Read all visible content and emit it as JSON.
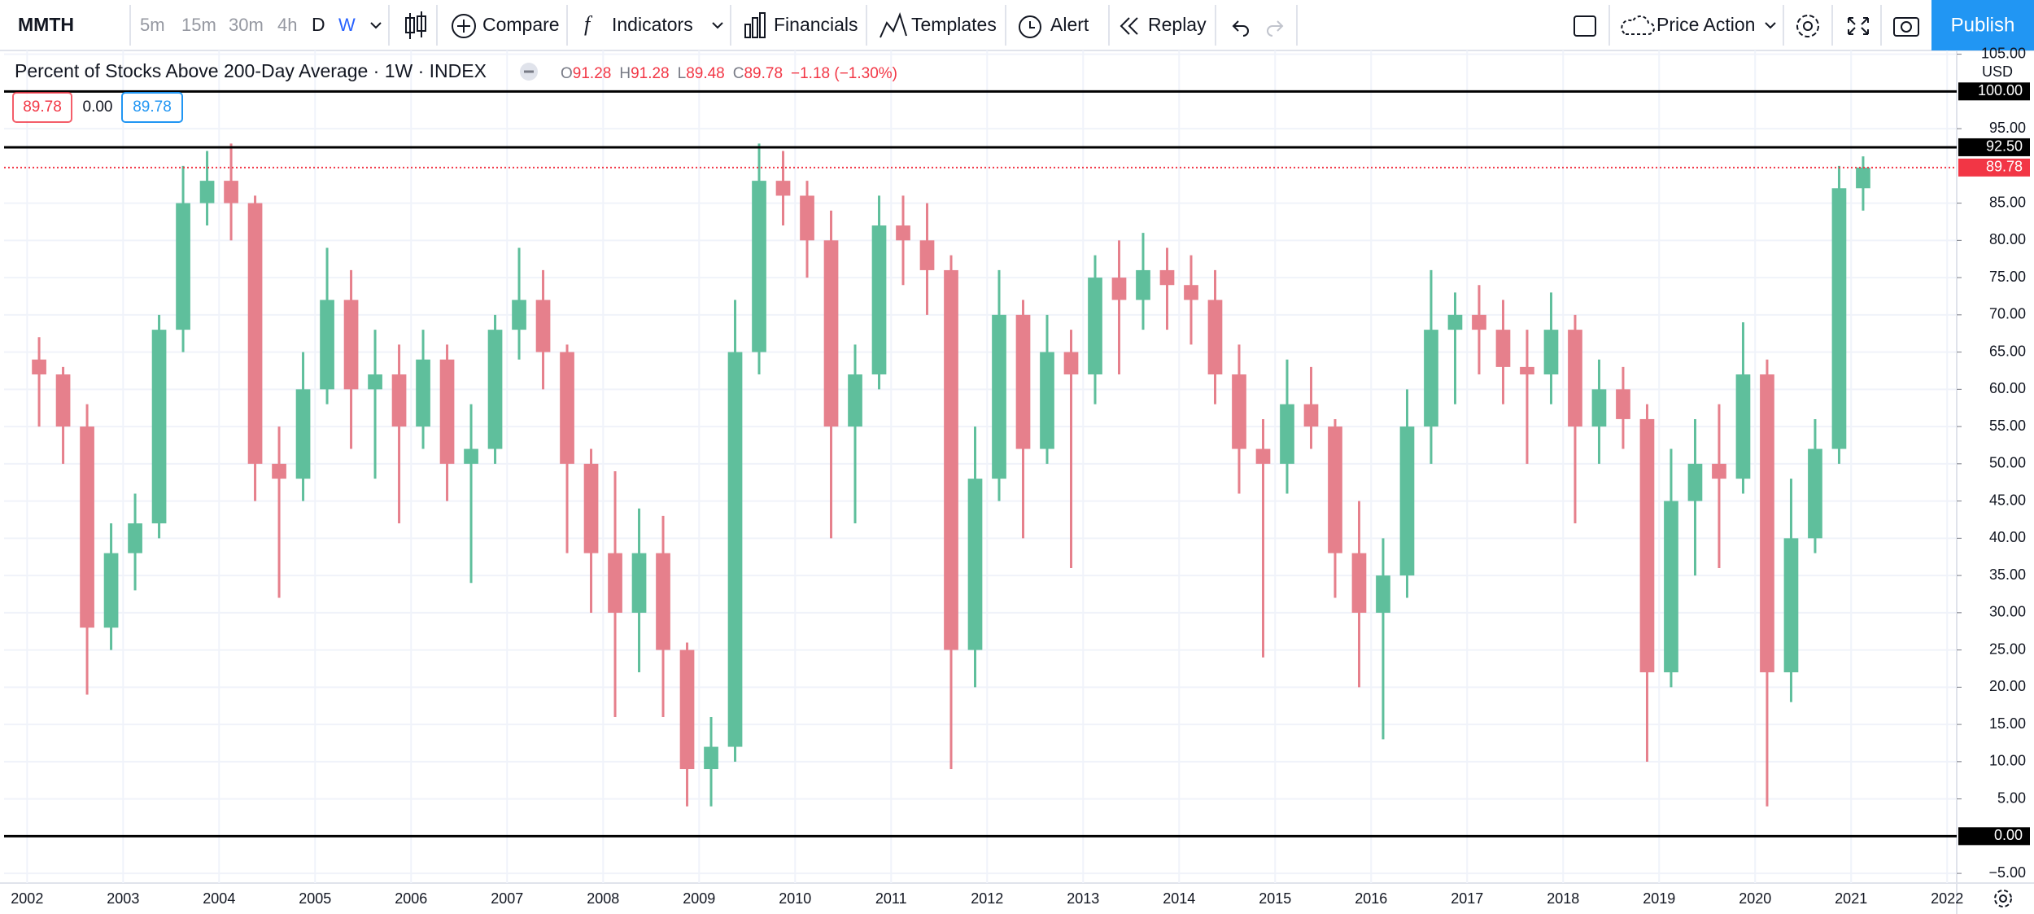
{
  "toolbar": {
    "symbol": "MMTH",
    "intervals": [
      "5m",
      "15m",
      "30m",
      "4h",
      "D",
      "W"
    ],
    "buttons": [
      "Compare",
      "Indicators",
      "Financials",
      "Templates",
      "Alert",
      "Replay"
    ],
    "layout": "Price Action",
    "publish": "Publish"
  },
  "legend": {
    "title": "Percent of Stocks Above 200-Day Average · 1W · INDEX",
    "ohlc": [
      {
        "key": "O",
        "value": "91.28"
      },
      {
        "key": "H",
        "value": "91.28"
      },
      {
        "key": "L",
        "value": "89.48"
      },
      {
        "key": "C",
        "value": "89.78"
      }
    ],
    "change": "−1.18 (−1.30%)",
    "boxes": [
      "89.78",
      "0.00",
      "89.78"
    ]
  },
  "chart_data": {
    "type": "candlestick",
    "currency": "USD",
    "up_color": "#5fbf9c",
    "down_color": "#e6808c",
    "grid": true,
    "xlim": [
      2001.76,
      2022.1
    ],
    "xticks": [
      2002,
      2003,
      2004,
      2005,
      2006,
      2007,
      2008,
      2009,
      2010,
      2011,
      2012,
      2013,
      2014,
      2015,
      2016,
      2017,
      2018,
      2019,
      2020,
      2021,
      2022
    ],
    "ylim": [
      -6.3,
      105.5
    ],
    "yticks": [
      {
        "value": 105,
        "label": "105.00"
      },
      {
        "value": 95,
        "label": "95.00"
      },
      {
        "value": 85,
        "label": "85.00"
      },
      {
        "value": 80,
        "label": "80.00"
      },
      {
        "value": 75,
        "label": "75.00"
      },
      {
        "value": 70,
        "label": "70.00"
      },
      {
        "value": 65,
        "label": "65.00"
      },
      {
        "value": 60,
        "label": "60.00"
      },
      {
        "value": 55,
        "label": "55.00"
      },
      {
        "value": 50,
        "label": "50.00"
      },
      {
        "value": 45,
        "label": "45.00"
      },
      {
        "value": 40,
        "label": "40.00"
      },
      {
        "value": 35,
        "label": "35.00"
      },
      {
        "value": 30,
        "label": "30.00"
      },
      {
        "value": 25,
        "label": "25.00"
      },
      {
        "value": 20,
        "label": "20.00"
      },
      {
        "value": 15,
        "label": "15.00"
      },
      {
        "value": 10,
        "label": "10.00"
      },
      {
        "value": 5,
        "label": "5.00"
      },
      {
        "value": -5,
        "label": "−5.00"
      }
    ],
    "hlines": [
      {
        "value": 100,
        "label": "100.00",
        "color": "#000000",
        "style": "solid"
      },
      {
        "value": 92.5,
        "label": "92.50",
        "color": "#000000",
        "style": "solid"
      },
      {
        "value": 89.78,
        "label": "89.78",
        "color": "#f23645",
        "style": "dotted"
      },
      {
        "value": 0,
        "label": "0.00",
        "color": "#000000",
        "style": "solid"
      }
    ],
    "x": [
      2002.125,
      2002.375,
      2002.625,
      2002.875,
      2003.125,
      2003.375,
      2003.625,
      2003.875,
      2004.125,
      2004.375,
      2004.625,
      2004.875,
      2005.125,
      2005.375,
      2005.625,
      2005.875,
      2006.125,
      2006.375,
      2006.625,
      2006.875,
      2007.125,
      2007.375,
      2007.625,
      2007.875,
      2008.125,
      2008.375,
      2008.625,
      2008.875,
      2009.125,
      2009.375,
      2009.625,
      2009.875,
      2010.125,
      2010.375,
      2010.625,
      2010.875,
      2011.125,
      2011.375,
      2011.625,
      2011.875,
      2012.125,
      2012.375,
      2012.625,
      2012.875,
      2013.125,
      2013.375,
      2013.625,
      2013.875,
      2014.125,
      2014.375,
      2014.625,
      2014.875,
      2015.125,
      2015.375,
      2015.625,
      2015.875,
      2016.125,
      2016.375,
      2016.625,
      2016.875,
      2017.125,
      2017.375,
      2017.625,
      2017.875,
      2018.125,
      2018.375,
      2018.625,
      2018.875,
      2019.125,
      2019.375,
      2019.625,
      2019.875,
      2020.125,
      2020.375,
      2020.625,
      2020.875,
      2021.125
    ],
    "open": [
      64,
      62,
      55,
      28,
      38,
      42,
      68,
      85,
      88,
      85,
      50,
      48,
      60,
      72,
      60,
      62,
      55,
      64,
      50,
      52,
      68,
      72,
      65,
      50,
      38,
      30,
      38,
      25,
      9,
      12,
      65,
      88,
      86,
      80,
      55,
      62,
      82,
      80,
      76,
      25,
      48,
      70,
      52,
      65,
      62,
      75,
      72,
      76,
      74,
      72,
      62,
      52,
      50,
      58,
      55,
      38,
      30,
      35,
      55,
      68,
      70,
      68,
      63,
      62,
      68,
      55,
      60,
      56,
      22,
      45,
      50,
      48,
      62,
      22,
      40,
      52,
      87
    ],
    "high": [
      67,
      63,
      58,
      42,
      46,
      70,
      90,
      92,
      93,
      86,
      55,
      65,
      79,
      76,
      68,
      66,
      68,
      66,
      58,
      70,
      79,
      76,
      66,
      52,
      49,
      44,
      43,
      26,
      16,
      72,
      93,
      92,
      88,
      84,
      66,
      86,
      86,
      85,
      78,
      55,
      76,
      72,
      70,
      68,
      78,
      80,
      81,
      79,
      78,
      76,
      66,
      56,
      64,
      63,
      56,
      45,
      40,
      60,
      76,
      73,
      74,
      72,
      68,
      73,
      70,
      64,
      63,
      58,
      52,
      56,
      58,
      69,
      64,
      48,
      56,
      90,
      91.28
    ],
    "low": [
      55,
      50,
      19,
      25,
      33,
      40,
      65,
      82,
      80,
      45,
      32,
      45,
      58,
      52,
      48,
      42,
      52,
      45,
      34,
      50,
      64,
      60,
      38,
      30,
      16,
      22,
      16,
      4,
      4,
      10,
      62,
      82,
      75,
      40,
      42,
      60,
      74,
      70,
      9,
      20,
      45,
      40,
      50,
      36,
      58,
      62,
      68,
      68,
      66,
      58,
      46,
      24,
      46,
      52,
      32,
      20,
      13,
      32,
      50,
      58,
      62,
      58,
      50,
      58,
      42,
      50,
      52,
      10,
      20,
      35,
      36,
      46,
      4,
      18,
      38,
      50,
      84
    ],
    "close": [
      62,
      55,
      28,
      38,
      42,
      68,
      85,
      88,
      85,
      50,
      48,
      60,
      72,
      60,
      62,
      55,
      64,
      50,
      52,
      68,
      72,
      65,
      50,
      38,
      30,
      38,
      25,
      9,
      12,
      65,
      88,
      86,
      80,
      55,
      62,
      82,
      80,
      76,
      25,
      48,
      70,
      52,
      65,
      62,
      75,
      72,
      76,
      74,
      72,
      62,
      52,
      50,
      58,
      55,
      38,
      30,
      35,
      55,
      68,
      70,
      68,
      63,
      62,
      68,
      55,
      60,
      56,
      22,
      45,
      50,
      48,
      62,
      22,
      40,
      52,
      87,
      89.78
    ]
  }
}
